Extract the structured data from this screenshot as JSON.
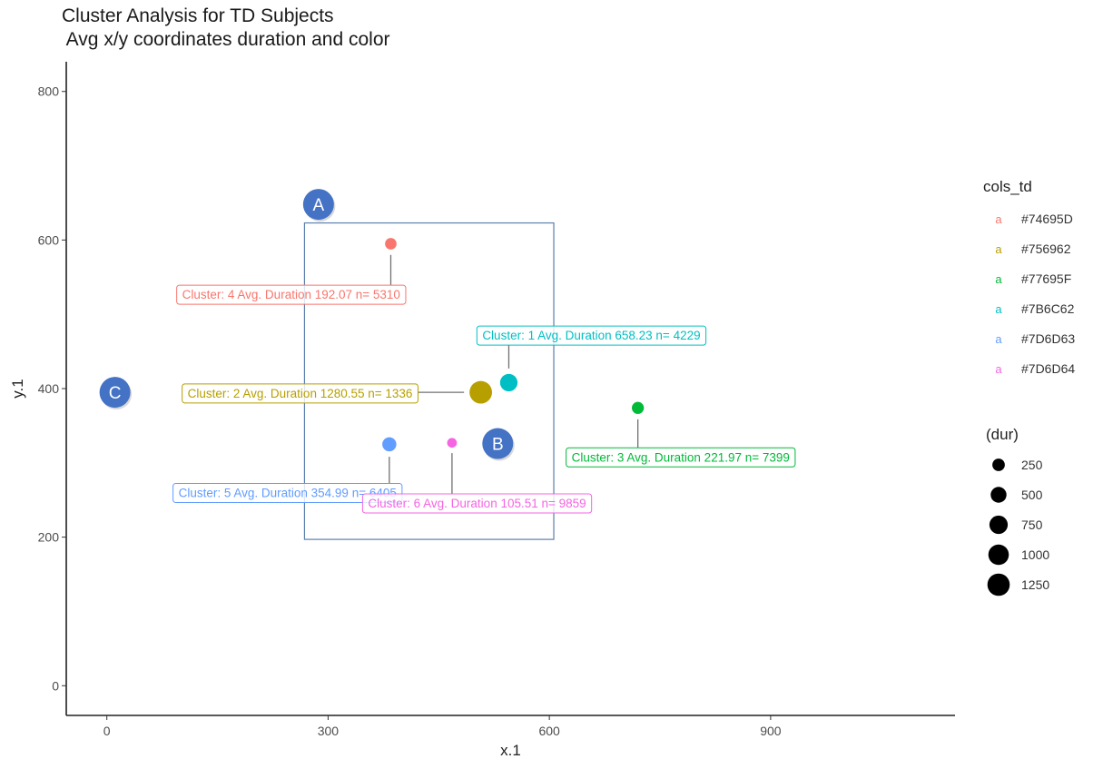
{
  "chart_data": {
    "type": "scatter",
    "title": "Cluster Analysis for TD Subjects",
    "subtitle": " Avg x/y coordinates duration and color",
    "xlabel": "x.1",
    "ylabel": "y.1",
    "xlim": [
      -55,
      1150
    ],
    "ylim": [
      -40,
      840
    ],
    "x_ticks": [
      0,
      300,
      600,
      900
    ],
    "y_ticks": [
      0,
      200,
      400,
      600,
      800
    ],
    "grid": false,
    "legend_color": {
      "title": "cols_td",
      "placement": "right",
      "key_glyph": "a",
      "entries": [
        {
          "label": "#74695D",
          "color": "#F8766D"
        },
        {
          "label": "#756962",
          "color": "#B79F00"
        },
        {
          "label": "#77695F",
          "color": "#00BA38"
        },
        {
          "label": "#7B6C62",
          "color": "#00BFC4"
        },
        {
          "label": "#7D6D63",
          "color": "#619CFF"
        },
        {
          "label": "#7D6D64",
          "color": "#F564E3"
        }
      ]
    },
    "legend_size": {
      "title": "(dur)",
      "placement": "right",
      "entries": [
        250,
        500,
        750,
        1000,
        1250
      ]
    },
    "points": [
      {
        "cluster": 4,
        "x": 385,
        "y": 595,
        "dur": 192.07,
        "color": "#F8766D",
        "label": "Cluster: 4 Avg. Duration  192.07  n= 5310",
        "label_x": 250,
        "label_y": 527
      },
      {
        "cluster": 1,
        "x": 545,
        "y": 408,
        "dur": 658.23,
        "color": "#00BFC4",
        "label": "Cluster: 1 Avg. Duration  658.23  n= 4229",
        "label_x": 657,
        "label_y": 472
      },
      {
        "cluster": 2,
        "x": 507,
        "y": 395,
        "dur": 1280.55,
        "color": "#B79F00",
        "label": "Cluster: 2 Avg. Duration  1280.55  n= 1336",
        "label_x": 262,
        "label_y": 394
      },
      {
        "cluster": 3,
        "x": 720,
        "y": 374,
        "dur": 221.97,
        "color": "#00BA38",
        "label": "Cluster: 3 Avg. Duration  221.97  n= 7399",
        "label_x": 778,
        "label_y": 308
      },
      {
        "cluster": 5,
        "x": 383,
        "y": 325,
        "dur": 354.99,
        "color": "#619CFF",
        "label": "Cluster: 5 Avg. Duration  354.99  n= 6405",
        "label_x": 245,
        "label_y": 260
      },
      {
        "cluster": 6,
        "x": 468,
        "y": 327,
        "dur": 105.51,
        "color": "#F564E3",
        "label": "Cluster: 6 Avg. Duration  105.51  n= 9859",
        "label_x": 502,
        "label_y": 246
      }
    ],
    "annotation_box": {
      "x0": 268,
      "x1": 606,
      "y0": 197,
      "y1": 623,
      "color": "#5B7FAE"
    },
    "markers": [
      {
        "text": "A",
        "x": 287,
        "y": 648
      },
      {
        "text": "B",
        "x": 530,
        "y": 326
      },
      {
        "text": "C",
        "x": 11,
        "y": 395
      }
    ],
    "marker_color": "#4472C4"
  }
}
